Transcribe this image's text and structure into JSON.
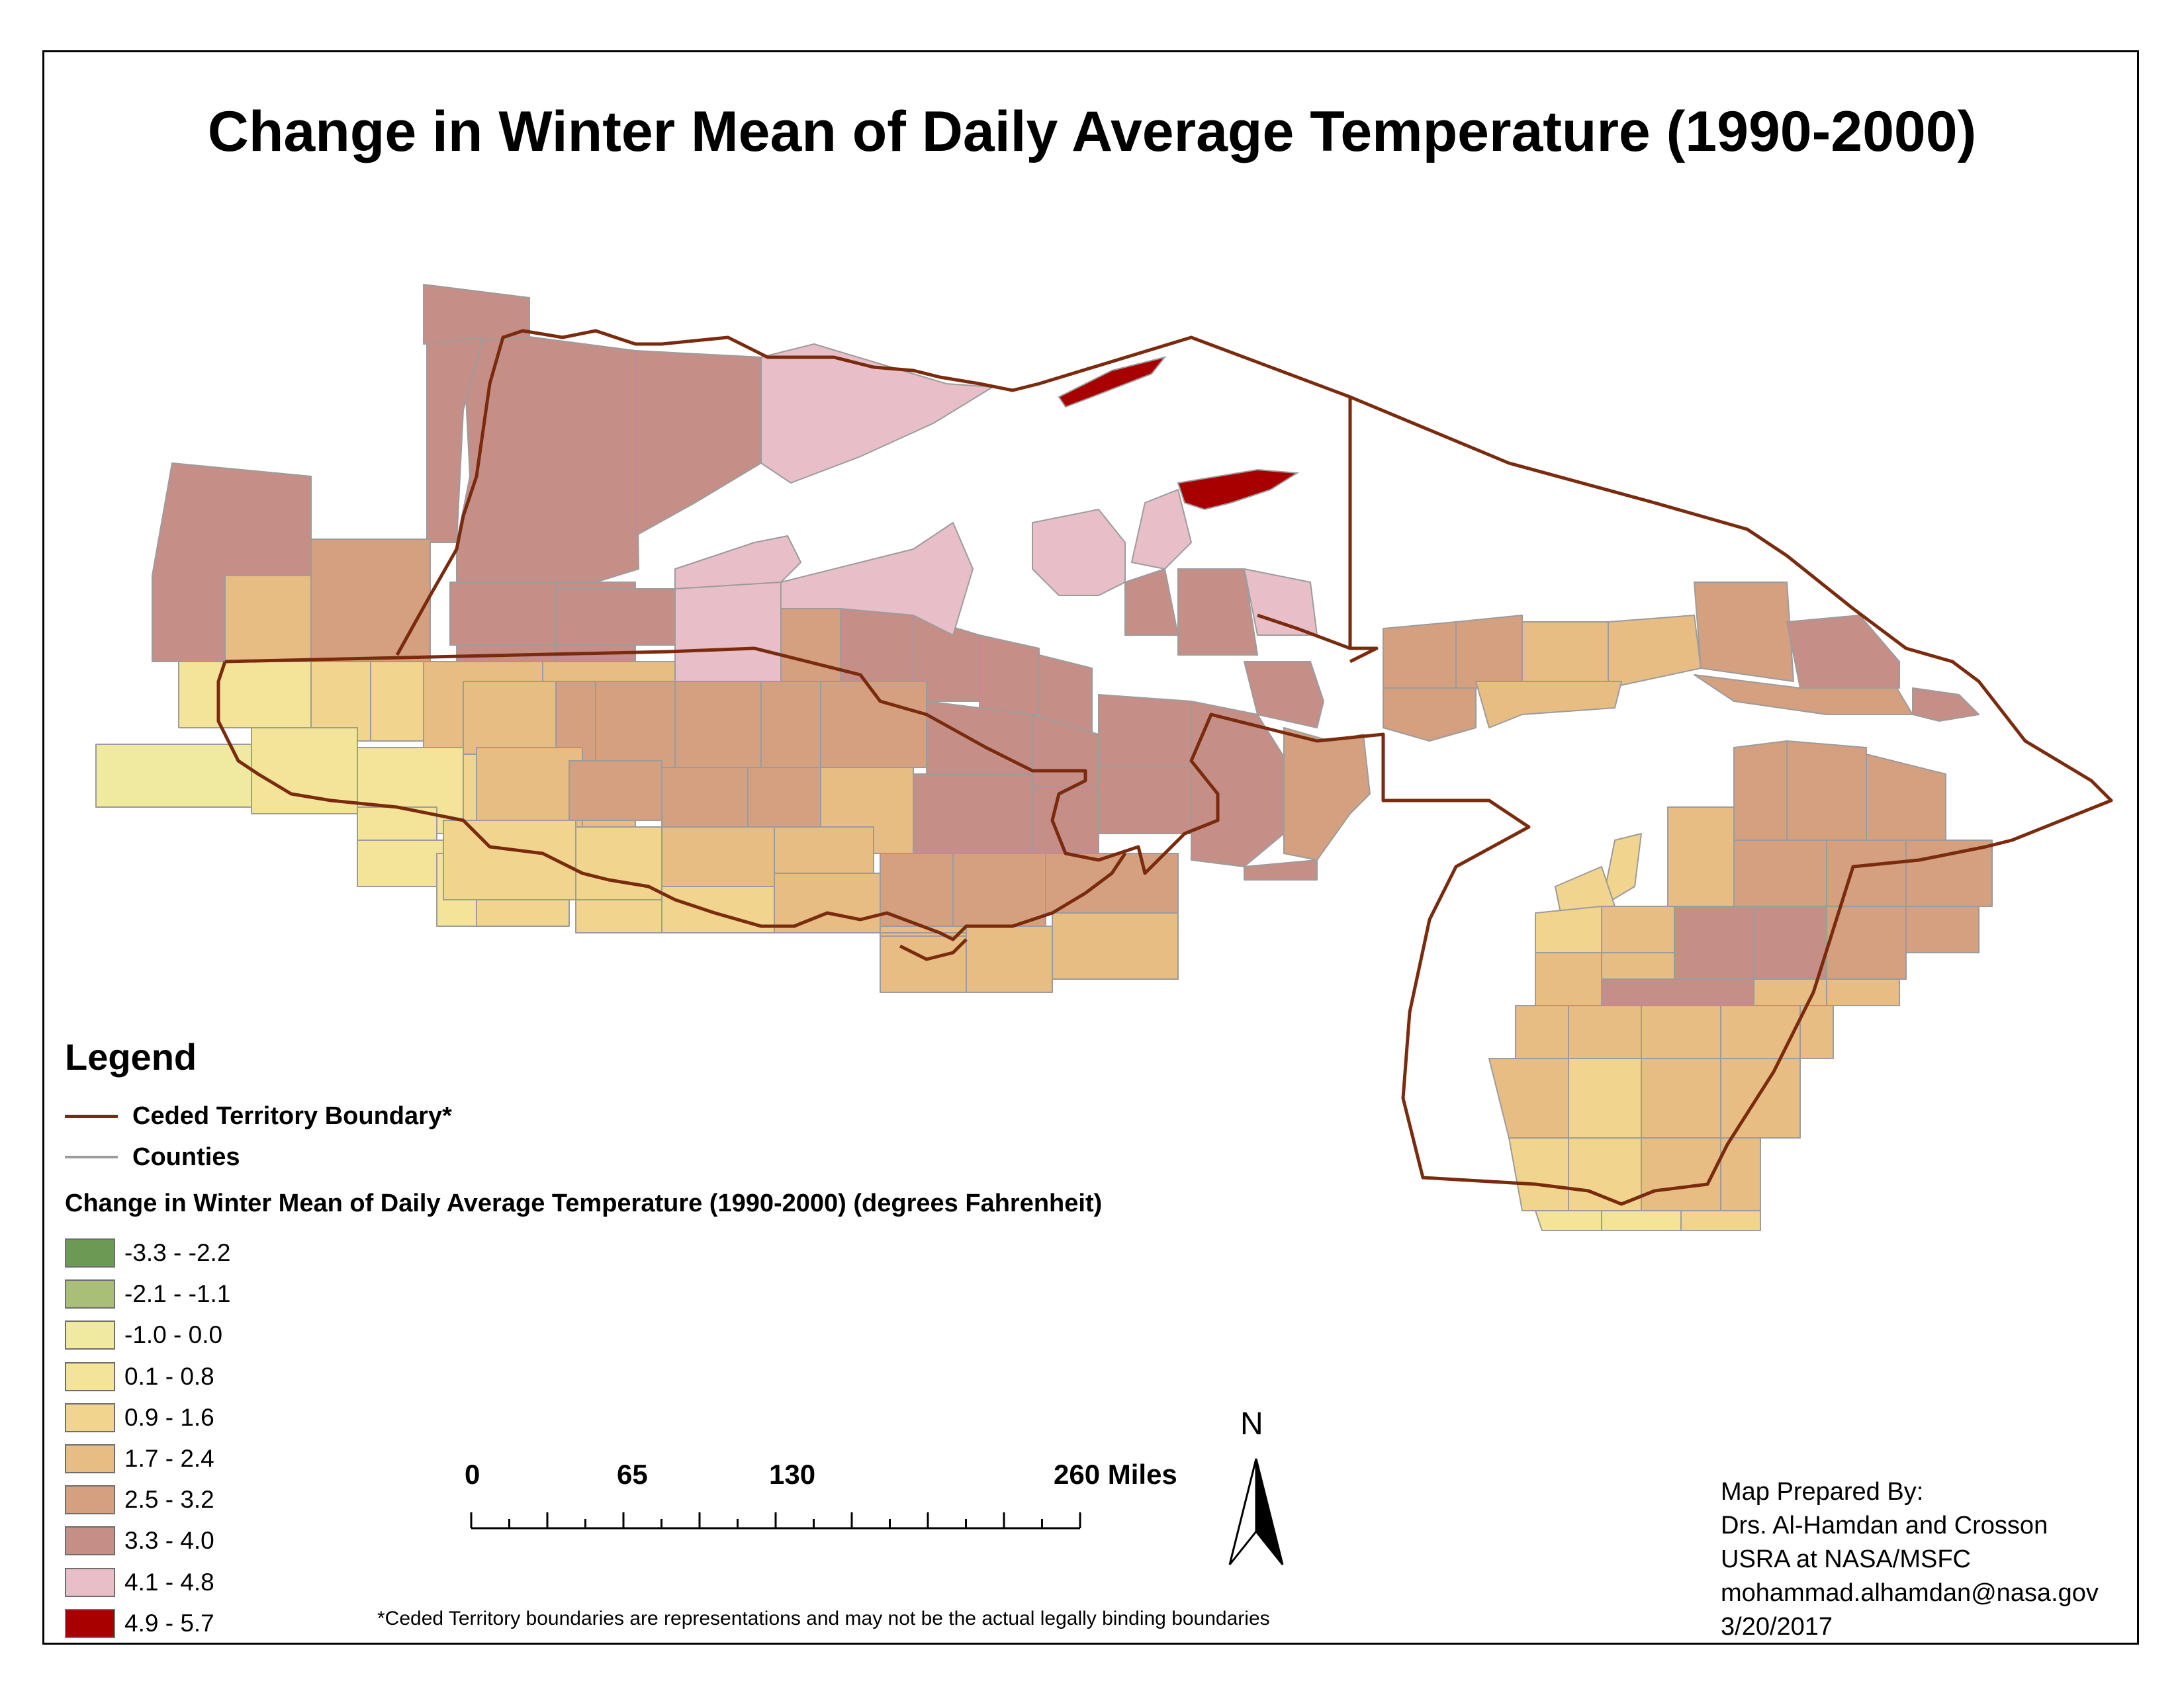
{
  "title": "Change in Winter Mean of Daily Average Temperature (1990-2000)",
  "legend": {
    "heading": "Legend",
    "line_items": [
      {
        "label": "Ceded Territory Boundary*",
        "color": "#7a2b0e"
      },
      {
        "label": "Counties",
        "color": "#9c9c9c"
      }
    ],
    "classes_title": "Change in Winter Mean of Daily Average Temperature (1990-2000) (degrees Fahrenheit)",
    "classes": [
      {
        "label": "-3.3 - -2.2",
        "color": "#6c9a55"
      },
      {
        "label": "-2.1 - -1.1",
        "color": "#a9bf78"
      },
      {
        "label": "-1.0 - 0.0",
        "color": "#f0e9a0"
      },
      {
        "label": "0.1 - 0.8",
        "color": "#f4e49a"
      },
      {
        "label": "0.9 - 1.6",
        "color": "#f1d48e"
      },
      {
        "label": "1.7 - 2.4",
        "color": "#e7bd84"
      },
      {
        "label": "2.5 - 3.2",
        "color": "#d4a07f"
      },
      {
        "label": "3.3 - 4.0",
        "color": "#c58f88"
      },
      {
        "label": "4.1 - 4.8",
        "color": "#e8bec9"
      },
      {
        "label": "4.9 - 5.7",
        "color": "#a80000"
      }
    ]
  },
  "scale_bar": {
    "labels": [
      "0",
      "65",
      "130",
      "260 Miles"
    ],
    "values": [
      0,
      65,
      130,
      260
    ]
  },
  "north_arrow": {
    "label": "N"
  },
  "credits": [
    "Map Prepared By:",
    "Drs. Al-Hamdan and Crosson",
    "USRA at NASA/MSFC",
    "mohammad.alhamdan@nasa.gov",
    "3/20/2017"
  ],
  "footnote": "*Ceded Territory boundaries are representations and may not be the actual legally binding boundaries"
}
